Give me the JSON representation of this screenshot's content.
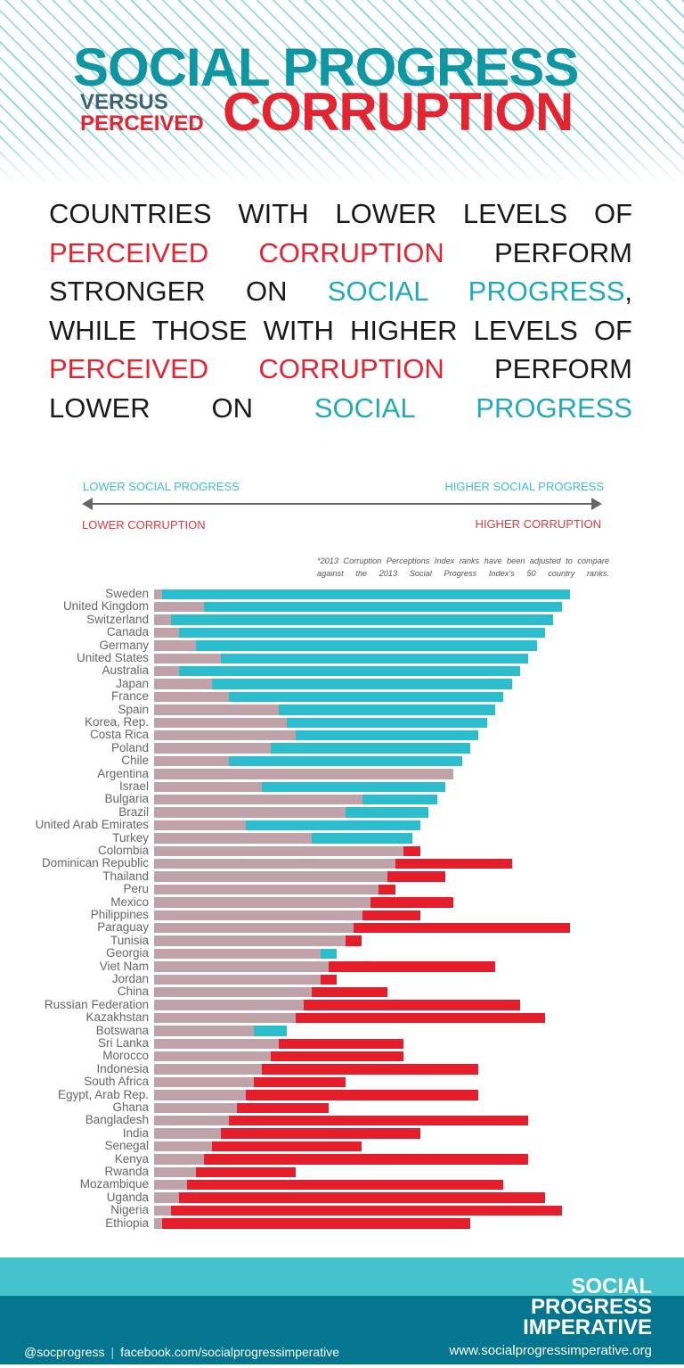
{
  "header": {
    "title_line1": "SOCIAL PROGRESS",
    "title_versus": "VERSUS",
    "title_perceived": "PERCEIVED",
    "title_corruption": "CORRUPTION"
  },
  "lead": {
    "lines": [
      [
        {
          "t": "COUNTRIES WITH LOWER LEVELS OF",
          "c": ""
        }
      ],
      [
        {
          "t": "PERCEIVED CORRUPTION",
          "c": "red"
        },
        {
          "t": " PERFORM",
          "c": ""
        }
      ],
      [
        {
          "t": "STRONGER ON ",
          "c": ""
        },
        {
          "t": "SOCIAL PROGRESS",
          "c": "teal"
        },
        {
          "t": ",",
          "c": ""
        }
      ],
      [
        {
          "t": "WHILE THOSE WITH HIGHER LEVELS OF",
          "c": ""
        }
      ],
      [
        {
          "t": "PERCEIVED CORRUPTION",
          "c": "red"
        },
        {
          "t": " PERFORM",
          "c": ""
        }
      ],
      [
        {
          "t": "LOWER ON ",
          "c": ""
        },
        {
          "t": "SOCIAL PROGRESS",
          "c": "teal"
        }
      ]
    ]
  },
  "legend": {
    "lower_sp": "LOWER SOCIAL PROGRESS",
    "higher_sp": "HIGHER SOCIAL PROGRESS",
    "lower_corruption": "LOWER CORRUPTION",
    "higher_corruption": "HIGHER CORRUPTION",
    "note": "*2013 Corruption Perceptions Index ranks have been adjusted to compare against the 2013 Social Progress Index's 50 country ranks."
  },
  "chart_data": {
    "type": "bar",
    "orientation": "horizontal",
    "scale": [
      0,
      50
    ],
    "colors": {
      "base": "#c0a3a8",
      "higher_social_progress": "#2bbdce",
      "higher_corruption": "#e61e2b"
    },
    "rows": [
      {
        "country": "Sweden",
        "spi_rank": 1,
        "cpi_rank": 1
      },
      {
        "country": "United Kingdom",
        "spi_rank": 2,
        "cpi_rank": 6
      },
      {
        "country": "Switzerland",
        "spi_rank": 3,
        "cpi_rank": 2
      },
      {
        "country": "Canada",
        "spi_rank": 4,
        "cpi_rank": 3
      },
      {
        "country": "Germany",
        "spi_rank": 5,
        "cpi_rank": 5
      },
      {
        "country": "United States",
        "spi_rank": 6,
        "cpi_rank": 8
      },
      {
        "country": "Australia",
        "spi_rank": 7,
        "cpi_rank": 3
      },
      {
        "country": "Japan",
        "spi_rank": 8,
        "cpi_rank": 7
      },
      {
        "country": "France",
        "spi_rank": 9,
        "cpi_rank": 9
      },
      {
        "country": "Spain",
        "spi_rank": 10,
        "cpi_rank": 15
      },
      {
        "country": "Korea, Rep.",
        "spi_rank": 11,
        "cpi_rank": 16
      },
      {
        "country": "Costa Rica",
        "spi_rank": 12,
        "cpi_rank": 17
      },
      {
        "country": "Poland",
        "spi_rank": 13,
        "cpi_rank": 14
      },
      {
        "country": "Chile",
        "spi_rank": 14,
        "cpi_rank": 9
      },
      {
        "country": "Argentina",
        "spi_rank": 15,
        "cpi_rank": 36
      },
      {
        "country": "Israel",
        "spi_rank": 16,
        "cpi_rank": 13
      },
      {
        "country": "Bulgaria",
        "spi_rank": 17,
        "cpi_rank": 25
      },
      {
        "country": "Brazil",
        "spi_rank": 18,
        "cpi_rank": 23
      },
      {
        "country": "United Arab Emirates",
        "spi_rank": 19,
        "cpi_rank": 11
      },
      {
        "country": "Turkey",
        "spi_rank": 20,
        "cpi_rank": 19
      },
      {
        "country": "Colombia",
        "spi_rank": 21,
        "cpi_rank": 32
      },
      {
        "country": "Dominican Republic",
        "spi_rank": 22,
        "cpi_rank": 43
      },
      {
        "country": "Thailand",
        "spi_rank": 23,
        "cpi_rank": 35
      },
      {
        "country": "Peru",
        "spi_rank": 24,
        "cpi_rank": 29
      },
      {
        "country": "Mexico",
        "spi_rank": 25,
        "cpi_rank": 36
      },
      {
        "country": "Philippines",
        "spi_rank": 26,
        "cpi_rank": 32
      },
      {
        "country": "Paraguay",
        "spi_rank": 27,
        "cpi_rank": 50
      },
      {
        "country": "Tunisia",
        "spi_rank": 28,
        "cpi_rank": 25
      },
      {
        "country": "Georgia",
        "spi_rank": 29,
        "cpi_rank": 20
      },
      {
        "country": "Viet Nam",
        "spi_rank": 30,
        "cpi_rank": 41
      },
      {
        "country": "Jordan",
        "spi_rank": 31,
        "cpi_rank": 22
      },
      {
        "country": "China",
        "spi_rank": 32,
        "cpi_rank": 28
      },
      {
        "country": "Russian Federation",
        "spi_rank": 33,
        "cpi_rank": 44
      },
      {
        "country": "Kazakhstan",
        "spi_rank": 34,
        "cpi_rank": 47
      },
      {
        "country": "Botswana",
        "spi_rank": 35,
        "cpi_rank": 12
      },
      {
        "country": "Sri Lanka",
        "spi_rank": 36,
        "cpi_rank": 30
      },
      {
        "country": "Morocco",
        "spi_rank": 37,
        "cpi_rank": 30
      },
      {
        "country": "Indonesia",
        "spi_rank": 38,
        "cpi_rank": 39
      },
      {
        "country": "South Africa",
        "spi_rank": 39,
        "cpi_rank": 23
      },
      {
        "country": "Egypt, Arab Rep.",
        "spi_rank": 40,
        "cpi_rank": 39
      },
      {
        "country": "Ghana",
        "spi_rank": 41,
        "cpi_rank": 21
      },
      {
        "country": "Bangladesh",
        "spi_rank": 42,
        "cpi_rank": 45
      },
      {
        "country": "India",
        "spi_rank": 43,
        "cpi_rank": 32
      },
      {
        "country": "Senegal",
        "spi_rank": 44,
        "cpi_rank": 25
      },
      {
        "country": "Kenya",
        "spi_rank": 45,
        "cpi_rank": 45
      },
      {
        "country": "Rwanda",
        "spi_rank": 46,
        "cpi_rank": 17
      },
      {
        "country": "Mozambique",
        "spi_rank": 47,
        "cpi_rank": 42
      },
      {
        "country": "Uganda",
        "spi_rank": 48,
        "cpi_rank": 47
      },
      {
        "country": "Nigeria",
        "spi_rank": 49,
        "cpi_rank": 49
      },
      {
        "country": "Ethiopia",
        "spi_rank": 50,
        "cpi_rank": 38
      }
    ]
  },
  "footer": {
    "logo_lines": [
      "SOCIAL",
      "PROGRESS",
      "IMPERATIVE"
    ],
    "twitter": "@socprogress",
    "separator": "|",
    "facebook": "facebook.com/socialprogressimperative",
    "website": "www.socialprogressimperative.org"
  }
}
